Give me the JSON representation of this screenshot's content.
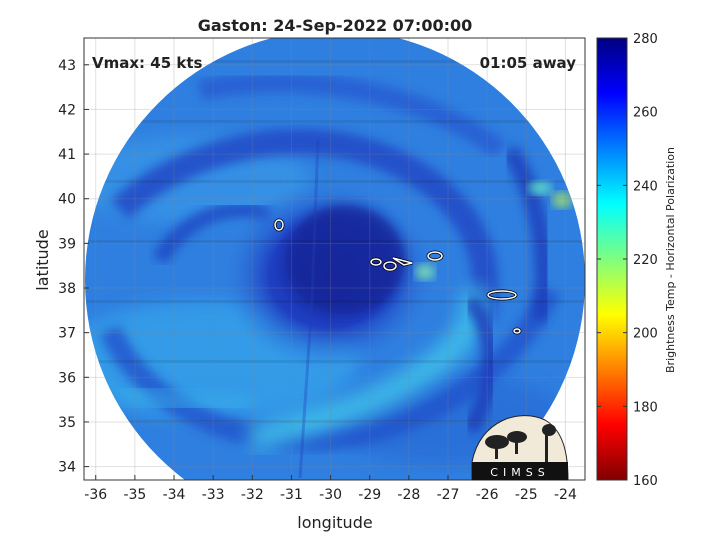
{
  "title": "Gaston: 24-Sep-2022 07:00:00",
  "vmax_label": "Vmax: 45 kts",
  "time_away_label": "01:05 away",
  "xlabel": "longitude",
  "ylabel": "latitude",
  "colorbar": {
    "label": "Brightness Temp - Horizontal Polarization",
    "ticks": [
      "160",
      "180",
      "200",
      "220",
      "240",
      "260",
      "280"
    ]
  },
  "logo_text": "CIMSS",
  "chart_data": {
    "type": "heatmap",
    "title": "Gaston: 24-Sep-2022 07:00:00",
    "xlabel": "longitude",
    "ylabel": "latitude",
    "xlim": [
      -36.3,
      -23.5
    ],
    "ylim": [
      33.7,
      43.6
    ],
    "x_ticks": [
      "-36",
      "-35",
      "-34",
      "-33",
      "-32",
      "-31",
      "-30",
      "-29",
      "-28",
      "-27",
      "-26",
      "-25",
      "-24"
    ],
    "y_ticks": [
      "34",
      "35",
      "36",
      "37",
      "38",
      "39",
      "40",
      "41",
      "42",
      "43"
    ],
    "colorbar_range": [
      160,
      280
    ],
    "colormap": "jet",
    "grid": true,
    "storm_center": [
      -29.0,
      38.6
    ]
  },
  "colors": {
    "field_base": "#2f7fe0",
    "field_dark": "#1f44c8",
    "field_core": "#1a2fb0",
    "field_light": "#29b8ea"
  }
}
